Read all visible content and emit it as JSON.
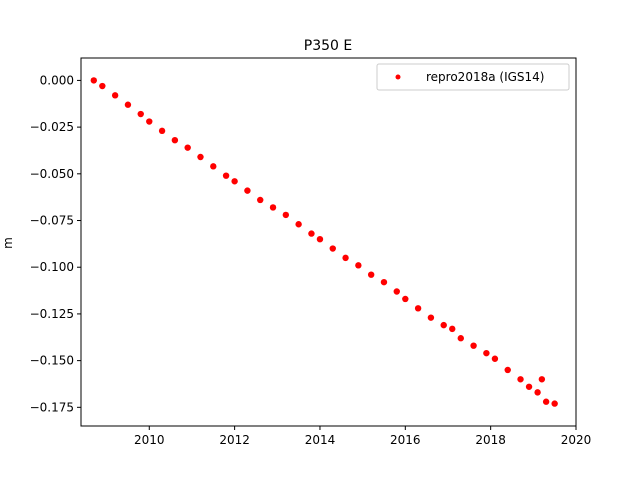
{
  "chart_data": {
    "type": "scatter",
    "title": "P350 E",
    "xlabel": "",
    "ylabel": "m",
    "xlim": [
      2008.4,
      2020.0
    ],
    "ylim": [
      -0.185,
      0.012
    ],
    "xticks": [
      2010,
      2012,
      2014,
      2016,
      2018,
      2020
    ],
    "xtick_labels": [
      "2010",
      "2012",
      "2014",
      "2016",
      "2018",
      "2020"
    ],
    "yticks": [
      0.0,
      -0.025,
      -0.05,
      -0.075,
      -0.1,
      -0.125,
      -0.15,
      -0.175
    ],
    "ytick_labels": [
      "0.000",
      "−0.025",
      "−0.050",
      "−0.075",
      "−0.100",
      "−0.125",
      "−0.150",
      "−0.175"
    ],
    "grid": false,
    "legend_position": "top-right",
    "series": [
      {
        "name": "repro2018a (IGS14)",
        "color": "#ff0000",
        "marker": "circle",
        "x": [
          2008.7,
          2008.9,
          2009.2,
          2009.5,
          2009.8,
          2010.0,
          2010.3,
          2010.6,
          2010.9,
          2011.2,
          2011.5,
          2011.8,
          2012.0,
          2012.3,
          2012.6,
          2012.9,
          2013.2,
          2013.5,
          2013.8,
          2014.0,
          2014.3,
          2014.6,
          2014.9,
          2015.2,
          2015.5,
          2015.8,
          2016.0,
          2016.3,
          2016.6,
          2016.9,
          2017.1,
          2017.3,
          2017.6,
          2017.9,
          2018.1,
          2018.4,
          2018.7,
          2018.9,
          2019.1,
          2019.2,
          2019.3,
          2019.5
        ],
        "y": [
          0.0,
          -0.003,
          -0.008,
          -0.013,
          -0.018,
          -0.022,
          -0.027,
          -0.032,
          -0.036,
          -0.041,
          -0.046,
          -0.051,
          -0.054,
          -0.059,
          -0.064,
          -0.068,
          -0.072,
          -0.077,
          -0.082,
          -0.085,
          -0.09,
          -0.095,
          -0.099,
          -0.104,
          -0.108,
          -0.113,
          -0.117,
          -0.122,
          -0.127,
          -0.131,
          -0.133,
          -0.138,
          -0.142,
          -0.146,
          -0.149,
          -0.155,
          -0.16,
          -0.164,
          -0.167,
          -0.16,
          -0.172,
          -0.173
        ]
      }
    ]
  }
}
